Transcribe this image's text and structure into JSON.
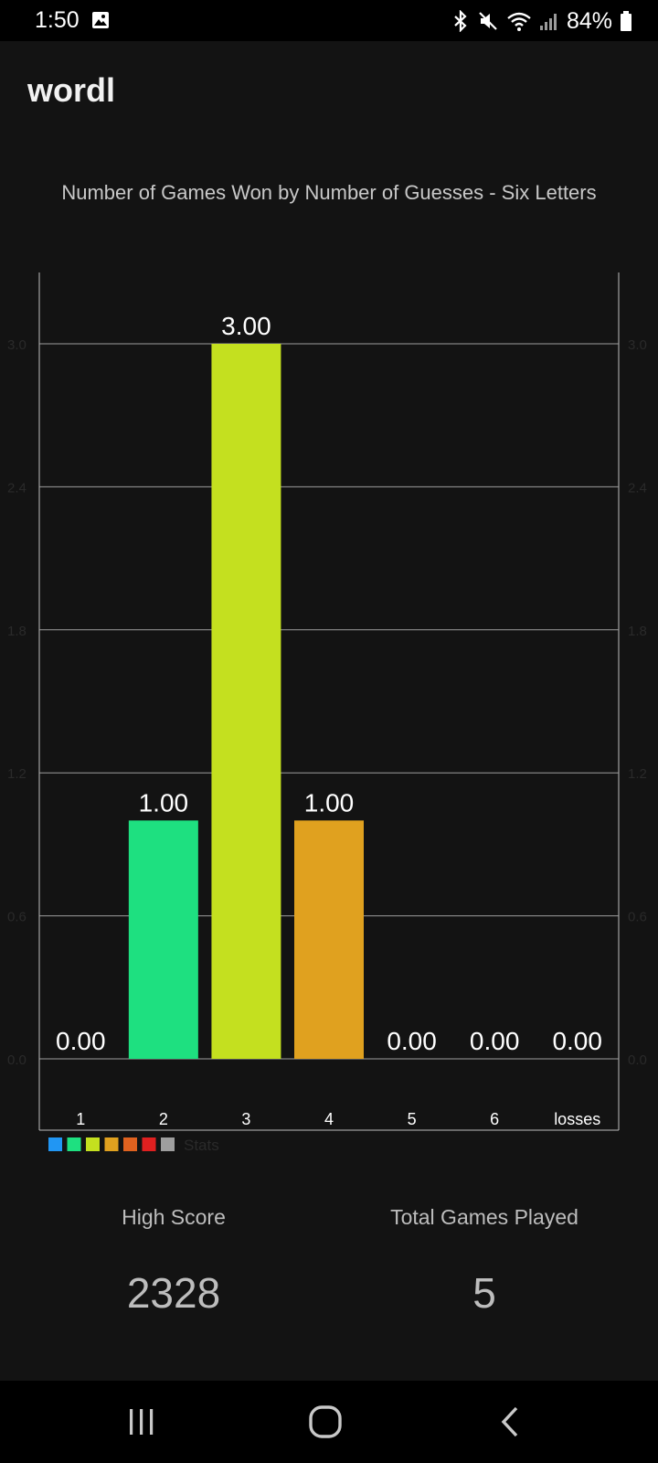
{
  "status_bar": {
    "time": "1:50",
    "battery": "84%",
    "icons": [
      "gallery-icon",
      "bluetooth-icon",
      "mute-icon",
      "wifi-icon",
      "signal-icon",
      "battery-icon"
    ]
  },
  "app": {
    "title": "wordl"
  },
  "chart_data": {
    "type": "bar",
    "title": "Number of Games Won by Number of Guesses - Six Letters",
    "categories": [
      "1",
      "2",
      "3",
      "4",
      "5",
      "6",
      "losses"
    ],
    "values": [
      0,
      1,
      3,
      1,
      0,
      0,
      0
    ],
    "value_labels": [
      "0.00",
      "1.00",
      "3.00",
      "1.00",
      "0.00",
      "0.00",
      "0.00"
    ],
    "bar_colors": [
      "#2196f3",
      "#1ee080",
      "#c4e01f",
      "#e0a11f",
      "#e0621f",
      "#e02020",
      "#9e9e9e"
    ],
    "y_ticks": [
      0,
      0.6,
      1.2,
      1.8,
      2.4,
      3.0
    ],
    "y_tick_labels": [
      "0.0",
      "0.6",
      "1.2",
      "1.8",
      "2.4",
      "3.0"
    ],
    "ylim": [
      0,
      3.3
    ],
    "grid": true,
    "legend": {
      "label": "Stats",
      "placement": "bottom-left",
      "colors": [
        "#2196f3",
        "#1ee080",
        "#c4e01f",
        "#e0a11f",
        "#e0621f",
        "#e02020",
        "#9e9e9e"
      ]
    },
    "xlabel": "",
    "ylabel": ""
  },
  "stats": {
    "high_score_label": "High Score",
    "high_score_value": "2328",
    "total_label": "Total Games Played",
    "total_value": "5"
  },
  "nav": {
    "icons": [
      "recents-icon",
      "home-icon",
      "back-icon"
    ]
  }
}
